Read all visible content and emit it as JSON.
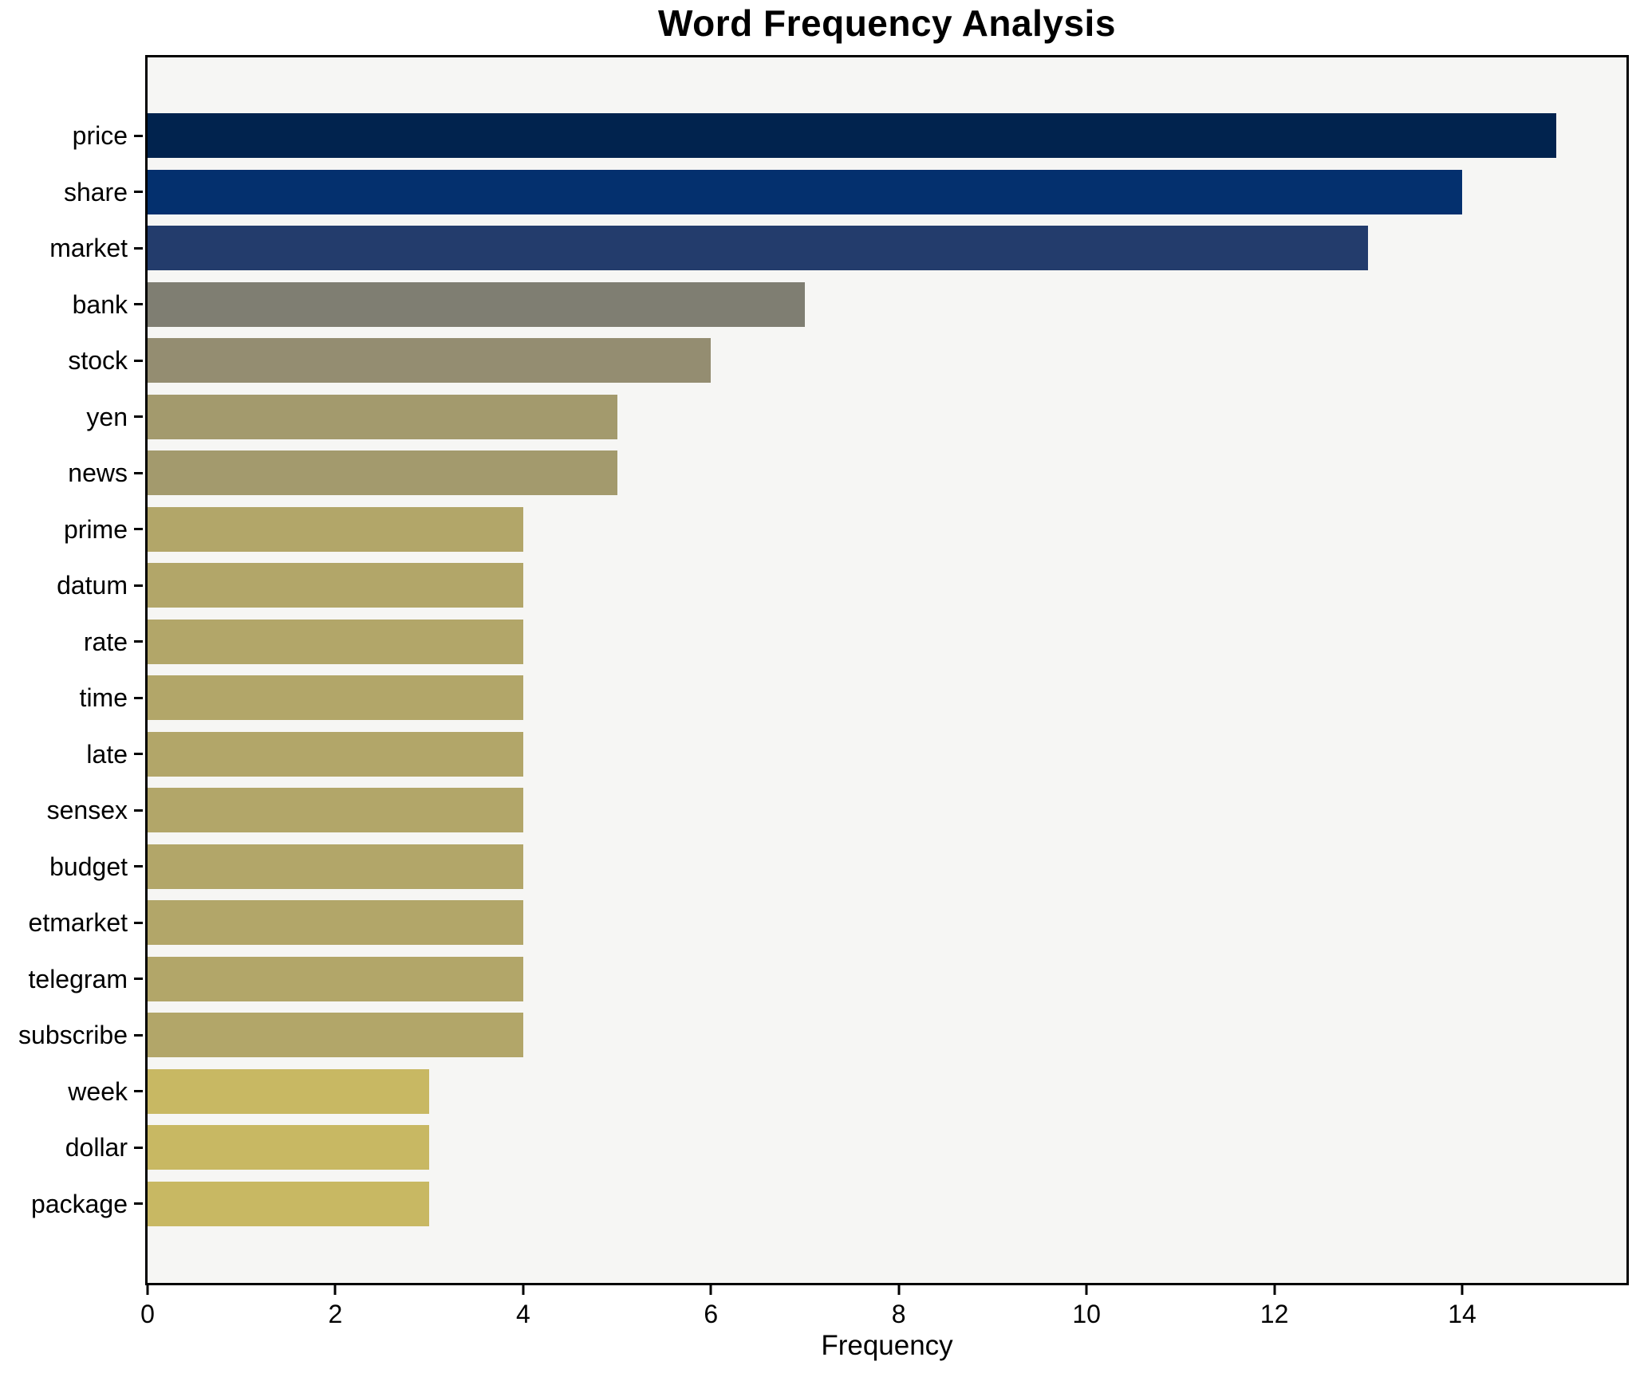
{
  "title": "Word Frequency Analysis",
  "axes": {
    "xlabel": "Frequency",
    "x_tick_labels": [
      "0",
      "2",
      "4",
      "6",
      "8",
      "10",
      "12",
      "14"
    ]
  },
  "colors": {
    "figure_background": "#ffffff",
    "plot_background": "#f6f6f4",
    "spine": "#000000",
    "text": "#000000"
  },
  "chart_data": {
    "type": "bar",
    "orientation": "horizontal",
    "title": "Word Frequency Analysis",
    "xlabel": "Frequency",
    "ylabel": "",
    "xlim": [
      0,
      15.75
    ],
    "x_ticks": [
      0,
      2,
      4,
      6,
      8,
      10,
      12,
      14
    ],
    "grid": false,
    "legend": "none",
    "categories": [
      "price",
      "share",
      "market",
      "bank",
      "stock",
      "yen",
      "news",
      "prime",
      "datum",
      "rate",
      "time",
      "late",
      "sensex",
      "budget",
      "etmarket",
      "telegram",
      "subscribe",
      "week",
      "dollar",
      "package"
    ],
    "values": [
      15,
      14,
      13,
      7,
      6,
      5,
      5,
      4,
      4,
      4,
      4,
      4,
      4,
      4,
      4,
      4,
      4,
      3,
      3,
      3
    ],
    "bar_colors": [
      "#01234e",
      "#04306e",
      "#233c6c",
      "#7f7e72",
      "#948d71",
      "#a39a6d",
      "#a39a6d",
      "#b2a669",
      "#b2a669",
      "#b2a669",
      "#b2a669",
      "#b2a669",
      "#b2a669",
      "#b2a669",
      "#b2a669",
      "#b2a669",
      "#b2a669",
      "#c8b863",
      "#c8b863",
      "#c8b863"
    ],
    "colormap_note": "cividis-style: dark navy for high frequency through gray to khaki yellow for low frequency"
  }
}
